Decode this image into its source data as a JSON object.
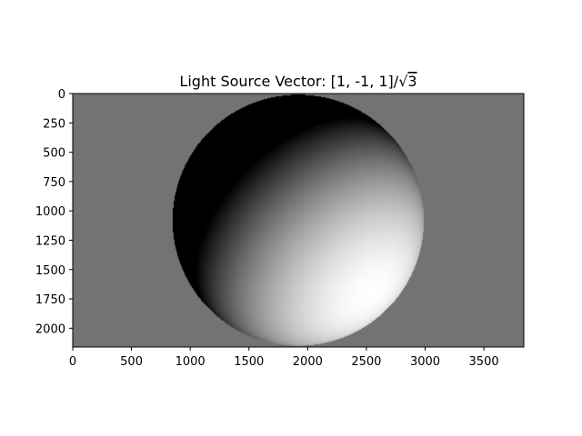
{
  "chart_data": {
    "type": "heatmap",
    "title": "Light Source Vector: [1, -1, 1]/√3",
    "title_main": "Light Source Vector: [1, -1, 1]/",
    "title_root": "√",
    "title_root_arg": "3",
    "xlabel": "",
    "ylabel": "",
    "xlim": [
      0,
      3840
    ],
    "ylim": [
      2160,
      0
    ],
    "xticks": [
      0,
      500,
      1000,
      1500,
      2000,
      2500,
      3000,
      3500
    ],
    "yticks": [
      0,
      250,
      500,
      750,
      1000,
      1250,
      1500,
      1750,
      2000
    ],
    "colormap": "gray",
    "grid": false,
    "image": {
      "width": 3840,
      "height": 2160,
      "background_intensity": 0.45,
      "sphere": {
        "center_x": 1920,
        "center_y": 1080,
        "radius": 1070
      },
      "light_vector": [
        1,
        -1,
        1
      ]
    }
  }
}
